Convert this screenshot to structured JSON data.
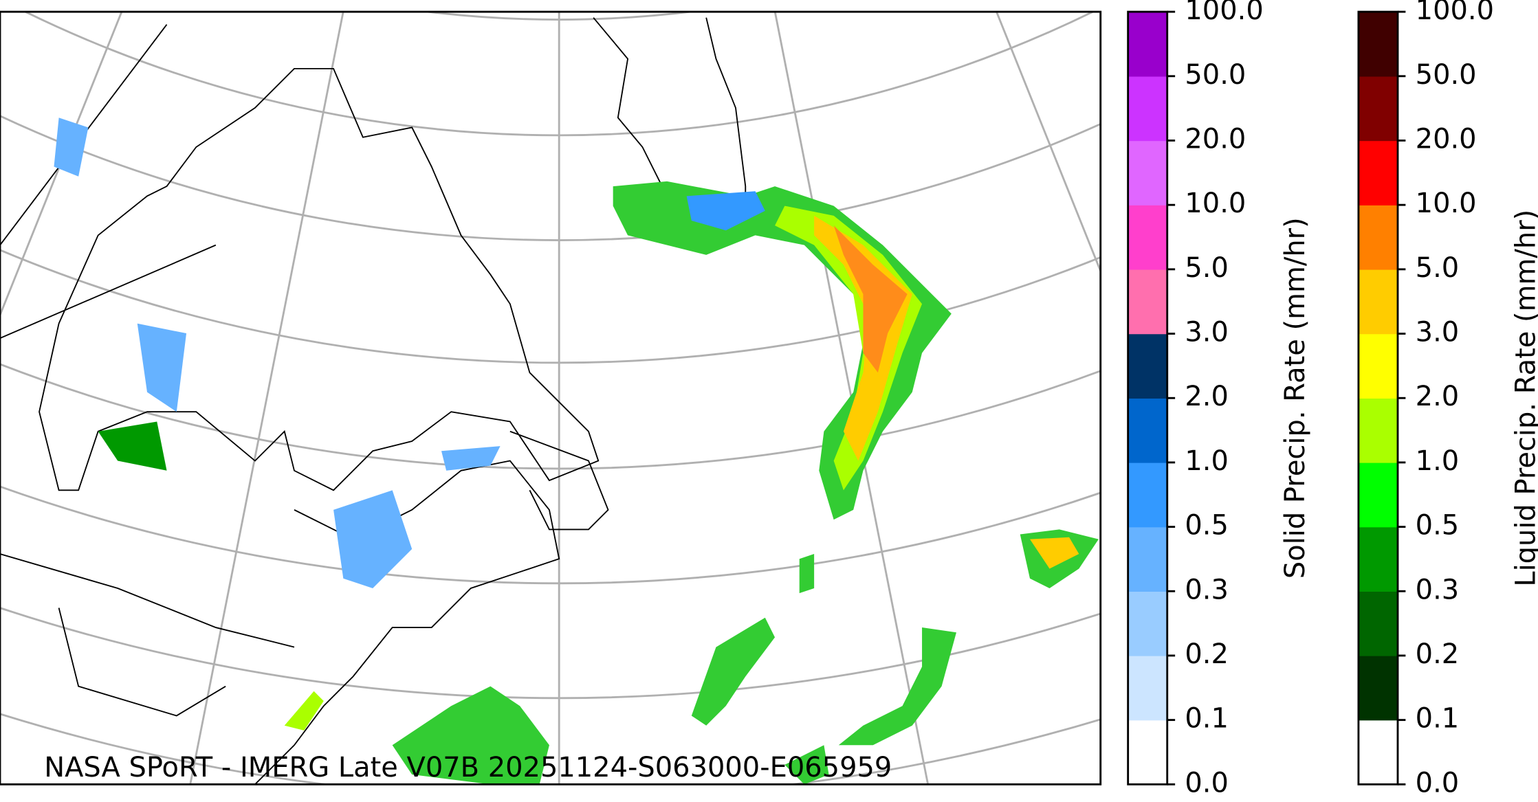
{
  "map": {
    "caption": "NASA SPoRT - IMERG Late V07B 20251124-S063000-E065959",
    "colorbars": [
      {
        "label": "Solid Precip. Rate (mm/hr)",
        "ticks": [
          "0.0",
          "0.1",
          "0.2",
          "0.3",
          "0.5",
          "1.0",
          "2.0",
          "3.0",
          "5.0",
          "10.0",
          "20.0",
          "50.0",
          "100.0"
        ],
        "colors": [
          "#ffffff",
          "#cce5ff",
          "#99ccff",
          "#66b2ff",
          "#3399ff",
          "#0066cc",
          "#003366",
          "#ff6fae",
          "#ff3fcc",
          "#e066ff",
          "#cc33ff",
          "#9900cc"
        ]
      },
      {
        "label": "Liquid Precip. Rate (mm/hr)",
        "ticks": [
          "0.0",
          "0.1",
          "0.2",
          "0.3",
          "0.5",
          "1.0",
          "2.0",
          "3.0",
          "5.0",
          "10.0",
          "20.0",
          "50.0",
          "100.0"
        ],
        "colors": [
          "#ffffff",
          "#003300",
          "#006600",
          "#009900",
          "#00ff00",
          "#aaff00",
          "#ffff00",
          "#ffcc00",
          "#ff8000",
          "#ff0000",
          "#800000",
          "#400000"
        ]
      }
    ]
  }
}
